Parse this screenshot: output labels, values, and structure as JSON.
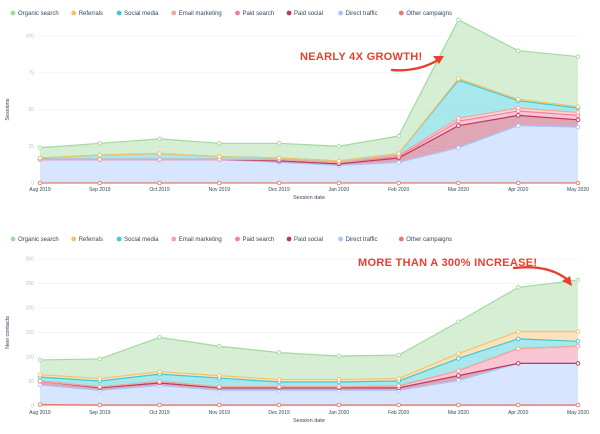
{
  "colors": {
    "organic_search": "#a3d9a0",
    "referrals": "#f5c26b",
    "social_media": "#3fc9d4",
    "email_marketing": "#f0a8a0",
    "paid_search": "#f57fa1",
    "paid_social": "#b83a5e",
    "direct_traffic": "#a8c5ff",
    "other_campaigns": "#e87b6f",
    "annotation": "#e8402e"
  },
  "chart_data": [
    {
      "type": "area",
      "stacked": true,
      "xlabel": "Session date",
      "ylabel": "Sessions",
      "categories": [
        "Aug 2019",
        "Sep 2019",
        "Oct 2019",
        "Nov 2019",
        "Dec 2019",
        "Jan 2020",
        "Feb 2020",
        "Mar 2020",
        "Apr 2020",
        "May 2020"
      ],
      "ylim": [
        0,
        100
      ],
      "yticks": [
        "0",
        "25",
        "50",
        "75",
        "100"
      ],
      "legend_position": "top-left",
      "annotation": "NEARLY 4X GROWTH!",
      "series": [
        {
          "name": "Organic search",
          "key": "organic_search",
          "values": [
            7,
            8,
            10,
            9,
            10,
            10,
            12,
            40,
            33,
            34
          ]
        },
        {
          "name": "Referrals",
          "key": "referrals",
          "values": [
            0,
            0,
            0,
            0,
            0,
            0,
            0,
            1,
            1,
            1
          ]
        },
        {
          "name": "Social media",
          "key": "social_media",
          "values": [
            1,
            3,
            4,
            2,
            1,
            1,
            1,
            26,
            5,
            3
          ]
        },
        {
          "name": "Email marketing",
          "key": "email_marketing",
          "values": [
            0,
            0,
            0,
            0,
            0,
            0,
            1,
            2,
            2,
            2
          ]
        },
        {
          "name": "Paid search",
          "key": "paid_search",
          "values": [
            0,
            0,
            0,
            0,
            1,
            1,
            1,
            3,
            3,
            3
          ]
        },
        {
          "name": "Paid social",
          "key": "paid_social",
          "values": [
            0,
            0,
            0,
            0,
            1,
            1,
            3,
            15,
            7,
            5
          ]
        },
        {
          "name": "Direct traffic",
          "key": "direct_traffic",
          "values": [
            16,
            16,
            16,
            16,
            14,
            12,
            14,
            24,
            39,
            38
          ]
        },
        {
          "name": "Other campaigns",
          "key": "other_campaigns",
          "values": [
            0,
            0,
            0,
            0,
            0,
            0,
            0,
            0,
            0,
            0
          ]
        }
      ]
    },
    {
      "type": "area",
      "stacked": true,
      "xlabel": "Session date",
      "ylabel": "New contacts",
      "categories": [
        "Aug 2019",
        "Sep 2019",
        "Oct 2019",
        "Nov 2019",
        "Dec 2019",
        "Jan 2020",
        "Feb 2020",
        "Mar 2020",
        "Apr 2020",
        "May 2020"
      ],
      "ylim": [
        0,
        300
      ],
      "yticks": [
        "0",
        "50",
        "100",
        "150",
        "200",
        "250",
        "300"
      ],
      "legend_position": "top-left",
      "annotation": "MORE THAN A 300% INCREASE!",
      "series": [
        {
          "name": "Organic search",
          "key": "organic_search",
          "values": [
            30,
            40,
            70,
            60,
            55,
            48,
            48,
            65,
            90,
            105
          ]
        },
        {
          "name": "Referrals",
          "key": "referrals",
          "values": [
            5,
            5,
            5,
            5,
            5,
            5,
            5,
            10,
            15,
            20
          ]
        },
        {
          "name": "Social media",
          "key": "social_media",
          "values": [
            8,
            12,
            15,
            18,
            10,
            10,
            10,
            25,
            20,
            10
          ]
        },
        {
          "name": "Email marketing",
          "key": "email_marketing",
          "values": [
            0,
            0,
            0,
            0,
            0,
            0,
            0,
            0,
            0,
            0
          ]
        },
        {
          "name": "Paid search",
          "key": "paid_search",
          "values": [
            0,
            2,
            3,
            2,
            2,
            2,
            4,
            10,
            30,
            35
          ]
        },
        {
          "name": "Paid social",
          "key": "paid_social",
          "values": [
            8,
            5,
            5,
            5,
            5,
            5,
            5,
            10,
            0,
            0
          ]
        },
        {
          "name": "Direct traffic",
          "key": "direct_traffic",
          "values": [
            40,
            30,
            40,
            30,
            30,
            30,
            30,
            50,
            85,
            85
          ]
        },
        {
          "name": "Other campaigns",
          "key": "other_campaigns",
          "values": [
            3,
            2,
            2,
            2,
            2,
            2,
            2,
            2,
            2,
            2
          ]
        }
      ]
    }
  ]
}
